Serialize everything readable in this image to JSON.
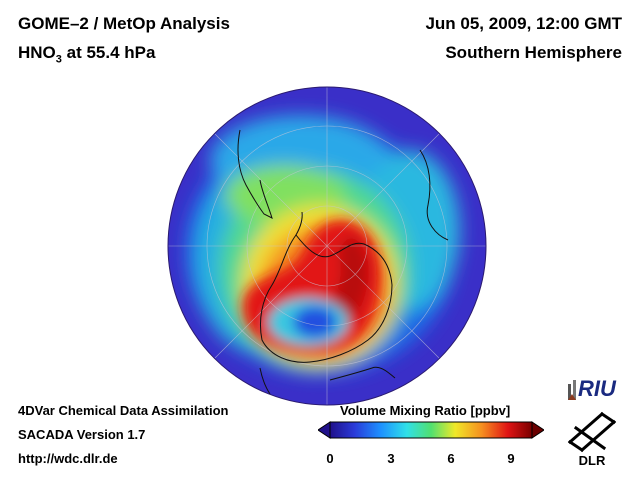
{
  "header": {
    "title_line1": "GOME–2 / MetOp Analysis",
    "species": "HNO",
    "species_subscript": "3",
    "level": " at 55.4 hPa",
    "datetime": "Jun 05, 2009, 12:00 GMT",
    "hemisphere": "Southern Hemisphere"
  },
  "footer": {
    "line1": "4DVar Chemical Data Assimilation",
    "line2": "SACADA Version 1.7",
    "line3": "http://wdc.dlr.de"
  },
  "colorbar": {
    "title": "Volume Mixing Ratio [ppbv]",
    "ticks": [
      "0",
      "3",
      "6",
      "9"
    ],
    "min": 0,
    "max": 10
  },
  "logos": {
    "riu": "RIU",
    "dlr": "DLR"
  },
  "colors": {
    "low": "#2a1a9c",
    "mid_low": "#1e90ff",
    "mid": "#40e0c0",
    "mid_high": "#f5e020",
    "high": "#e01010",
    "max": "#7a0000"
  }
}
